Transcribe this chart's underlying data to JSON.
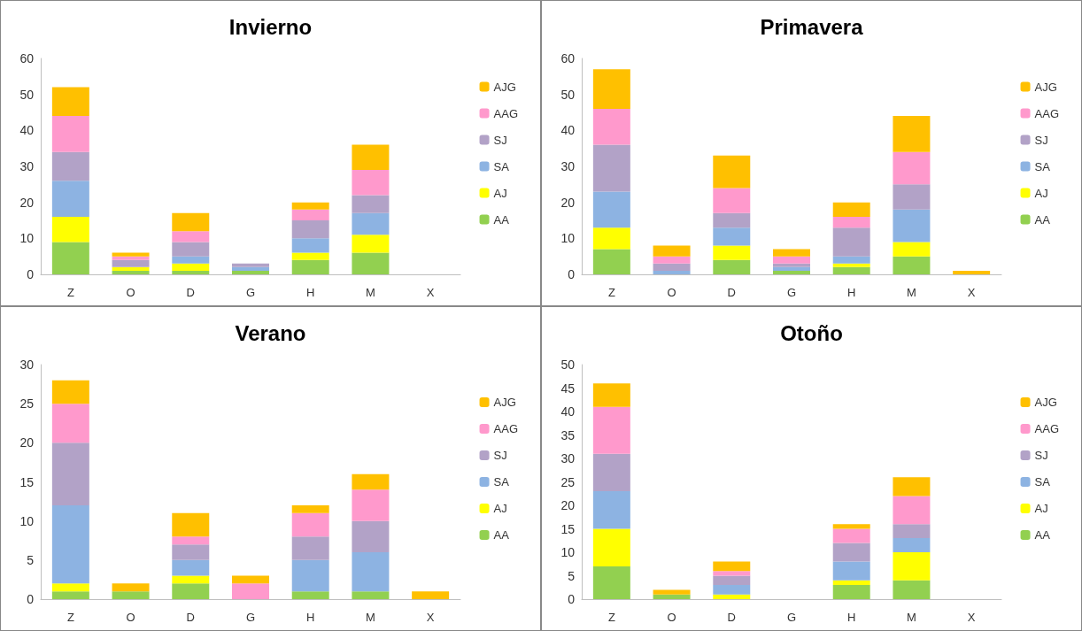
{
  "chart_data": [
    {
      "type": "bar",
      "title": "Invierno",
      "stacked": true,
      "legend": "right",
      "grid": false,
      "categories": [
        "Z",
        "O",
        "D",
        "G",
        "H",
        "M",
        "X"
      ],
      "ylim": [
        0,
        60
      ],
      "yticks": [
        0,
        10,
        20,
        30,
        40,
        50,
        60
      ],
      "series": [
        {
          "name": "AA",
          "color": "#92d050",
          "values": [
            9,
            1,
            1,
            1,
            4,
            6,
            0
          ]
        },
        {
          "name": "AJ",
          "color": "#ffff00",
          "values": [
            7,
            1,
            2,
            0,
            2,
            5,
            0
          ]
        },
        {
          "name": "SA",
          "color": "#8db3e2",
          "values": [
            10,
            0,
            2,
            1,
            4,
            6,
            0
          ]
        },
        {
          "name": "SJ",
          "color": "#b2a2c7",
          "values": [
            8,
            2,
            4,
            1,
            5,
            5,
            0
          ]
        },
        {
          "name": "AAG",
          "color": "#ff99cc",
          "values": [
            10,
            1,
            3,
            0,
            3,
            7,
            0
          ]
        },
        {
          "name": "AJG",
          "color": "#ffc000",
          "values": [
            8,
            1,
            5,
            0,
            2,
            7,
            0
          ]
        }
      ]
    },
    {
      "type": "bar",
      "title": "Primavera",
      "stacked": true,
      "legend": "right",
      "grid": false,
      "categories": [
        "Z",
        "O",
        "D",
        "G",
        "H",
        "M",
        "X"
      ],
      "ylim": [
        0,
        60
      ],
      "yticks": [
        0,
        10,
        20,
        30,
        40,
        50,
        60
      ],
      "series": [
        {
          "name": "AA",
          "color": "#92d050",
          "values": [
            7,
            0,
            4,
            1,
            2,
            5,
            0
          ]
        },
        {
          "name": "AJ",
          "color": "#ffff00",
          "values": [
            6,
            0,
            4,
            0,
            1,
            4,
            0
          ]
        },
        {
          "name": "SA",
          "color": "#8db3e2",
          "values": [
            10,
            1,
            5,
            1,
            2,
            9,
            0
          ]
        },
        {
          "name": "SJ",
          "color": "#b2a2c7",
          "values": [
            13,
            2,
            4,
            1,
            8,
            7,
            0
          ]
        },
        {
          "name": "AAG",
          "color": "#ff99cc",
          "values": [
            10,
            2,
            7,
            2,
            3,
            9,
            0
          ]
        },
        {
          "name": "AJG",
          "color": "#ffc000",
          "values": [
            11,
            3,
            9,
            2,
            4,
            10,
            1
          ]
        }
      ]
    },
    {
      "type": "bar",
      "title": "Verano",
      "stacked": true,
      "legend": "right",
      "grid": false,
      "categories": [
        "Z",
        "O",
        "D",
        "G",
        "H",
        "M",
        "X"
      ],
      "ylim": [
        0,
        30
      ],
      "yticks": [
        0,
        5,
        10,
        15,
        20,
        25,
        30
      ],
      "series": [
        {
          "name": "AA",
          "color": "#92d050",
          "values": [
            1,
            1,
            2,
            0,
            1,
            1,
            0
          ]
        },
        {
          "name": "AJ",
          "color": "#ffff00",
          "values": [
            1,
            0,
            1,
            0,
            0,
            0,
            0
          ]
        },
        {
          "name": "SA",
          "color": "#8db3e2",
          "values": [
            10,
            0,
            2,
            0,
            4,
            5,
            0
          ]
        },
        {
          "name": "SJ",
          "color": "#b2a2c7",
          "values": [
            8,
            0,
            2,
            0,
            3,
            4,
            0
          ]
        },
        {
          "name": "AAG",
          "color": "#ff99cc",
          "values": [
            5,
            0,
            1,
            2,
            3,
            4,
            0
          ]
        },
        {
          "name": "AJG",
          "color": "#ffc000",
          "values": [
            3,
            1,
            3,
            1,
            1,
            2,
            1
          ]
        }
      ]
    },
    {
      "type": "bar",
      "title": "Otoño",
      "stacked": true,
      "legend": "right",
      "grid": false,
      "categories": [
        "Z",
        "O",
        "D",
        "G",
        "H",
        "M",
        "X"
      ],
      "ylim": [
        0,
        50
      ],
      "yticks": [
        0,
        5,
        10,
        15,
        20,
        25,
        30,
        35,
        40,
        45,
        50
      ],
      "series": [
        {
          "name": "AA",
          "color": "#92d050",
          "values": [
            7,
            1,
            0,
            0,
            3,
            4,
            0
          ]
        },
        {
          "name": "AJ",
          "color": "#ffff00",
          "values": [
            8,
            0,
            1,
            0,
            1,
            6,
            0
          ]
        },
        {
          "name": "SA",
          "color": "#8db3e2",
          "values": [
            8,
            0,
            2,
            0,
            4,
            3,
            0
          ]
        },
        {
          "name": "SJ",
          "color": "#b2a2c7",
          "values": [
            8,
            0,
            2,
            0,
            4,
            3,
            0
          ]
        },
        {
          "name": "AAG",
          "color": "#ff99cc",
          "values": [
            10,
            0,
            1,
            0,
            3,
            6,
            0
          ]
        },
        {
          "name": "AJG",
          "color": "#ffc000",
          "values": [
            5,
            1,
            2,
            0,
            1,
            4,
            0
          ]
        }
      ]
    }
  ]
}
